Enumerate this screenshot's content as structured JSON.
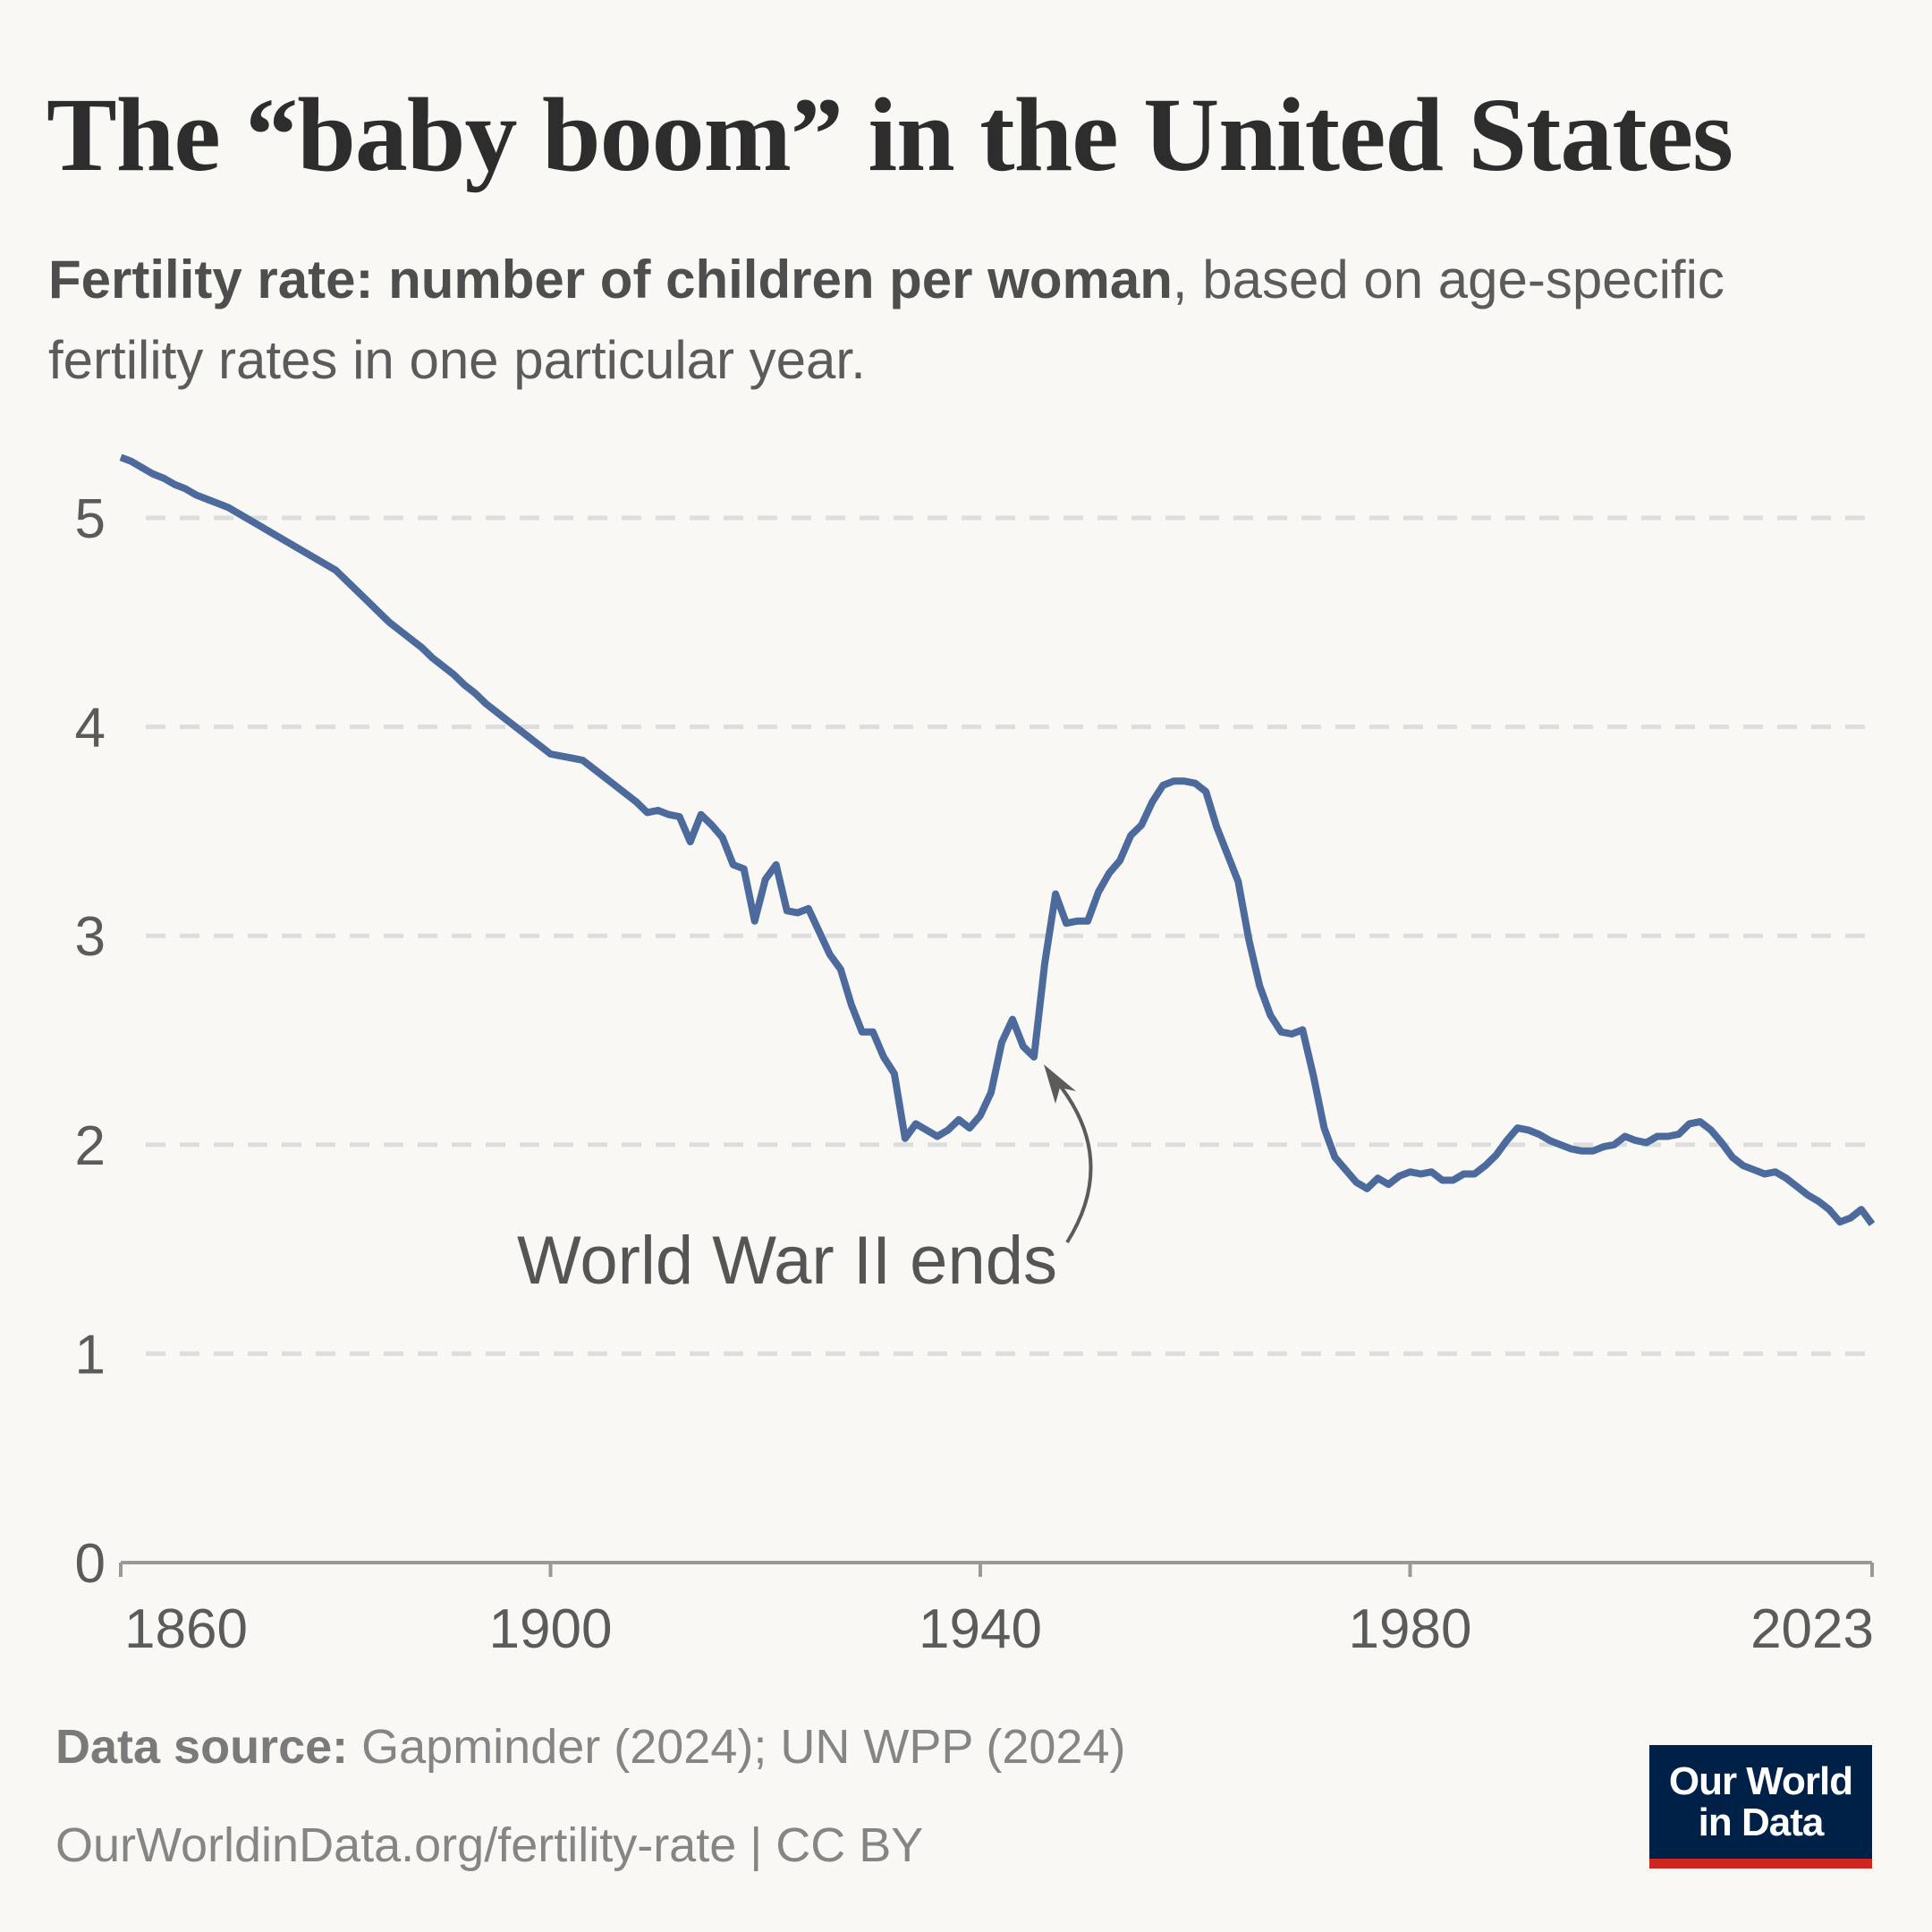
{
  "title": "The “baby boom” in the United States",
  "subtitle": {
    "bold": "Fertility rate: number of children per woman",
    "rest": ", based on age-specific fertility rates in one particular year."
  },
  "footer": {
    "source_label": "Data source:",
    "source_text": " Gapminder (2024); UN WPP (2024)",
    "url_line": "OurWorldinData.org/fertility-rate | CC BY"
  },
  "logo": {
    "line1": "Our World",
    "line2": "in Data"
  },
  "colors": {
    "line": "#4c6a9c",
    "background": "#f9f8f4",
    "logo_bg": "#002147",
    "logo_accent": "#ce261e",
    "grid": "#dddddd"
  },
  "chart_data": {
    "type": "line",
    "title": "The “baby boom” in the United States",
    "xlabel": "",
    "ylabel": "",
    "xlim": [
      1860,
      2023
    ],
    "ylim": [
      0,
      5
    ],
    "grid": "horizontal dashed",
    "x_ticks": [
      "1860",
      "1900",
      "1940",
      "1980",
      "2023"
    ],
    "y_ticks": [
      "0",
      "1",
      "2",
      "3",
      "4",
      "5"
    ],
    "annotation": {
      "text": "World War II ends",
      "year": 1945
    },
    "x_start": 1860,
    "values": [
      5.29,
      5.27,
      5.24,
      5.21,
      5.19,
      5.16,
      5.14,
      5.11,
      5.09,
      5.07,
      5.05,
      5.02,
      4.99,
      4.96,
      4.93,
      4.9,
      4.87,
      4.84,
      4.81,
      4.78,
      4.75,
      4.7,
      4.65,
      4.6,
      4.55,
      4.5,
      4.46,
      4.42,
      4.38,
      4.33,
      4.29,
      4.25,
      4.2,
      4.16,
      4.11,
      4.07,
      4.03,
      3.99,
      3.95,
      3.91,
      3.87,
      3.86,
      3.85,
      3.84,
      3.8,
      3.76,
      3.72,
      3.68,
      3.64,
      3.59,
      3.6,
      3.58,
      3.57,
      3.45,
      3.58,
      3.53,
      3.47,
      3.34,
      3.32,
      3.07,
      3.27,
      3.34,
      3.12,
      3.11,
      3.13,
      3.02,
      2.91,
      2.84,
      2.67,
      2.54,
      2.54,
      2.42,
      2.34,
      2.03,
      2.1,
      2.07,
      2.04,
      2.07,
      2.12,
      2.08,
      2.14,
      2.25,
      2.49,
      2.6,
      2.47,
      2.42,
      2.87,
      3.2,
      3.06,
      3.07,
      3.07,
      3.21,
      3.3,
      3.36,
      3.48,
      3.53,
      3.64,
      3.72,
      3.74,
      3.74,
      3.73,
      3.69,
      3.52,
      3.39,
      3.26,
      2.98,
      2.76,
      2.62,
      2.54,
      2.53,
      2.55,
      2.33,
      2.08,
      1.94,
      1.88,
      1.82,
      1.79,
      1.84,
      1.81,
      1.85,
      1.87,
      1.86,
      1.87,
      1.83,
      1.83,
      1.86,
      1.86,
      1.9,
      1.95,
      2.02,
      2.08,
      2.07,
      2.05,
      2.02,
      2.0,
      1.98,
      1.97,
      1.97,
      1.99,
      2.0,
      2.04,
      2.02,
      2.01,
      2.04,
      2.04,
      2.05,
      2.1,
      2.11,
      2.07,
      2.01,
      1.94,
      1.9,
      1.88,
      1.86,
      1.87,
      1.84,
      1.8,
      1.76,
      1.73,
      1.69,
      1.63,
      1.65,
      1.69,
      1.62
    ]
  }
}
